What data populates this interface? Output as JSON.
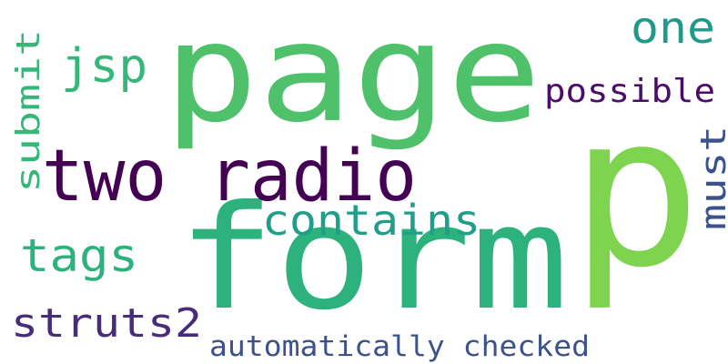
{
  "word_cloud": {
    "words": [
      {
        "text": "page",
        "color": "#4fc16b",
        "orientation": "horizontal"
      },
      {
        "text": "p",
        "color": "#7ed34f",
        "orientation": "horizontal"
      },
      {
        "text": "form",
        "color": "#2db27d",
        "orientation": "horizontal"
      },
      {
        "text": "two radio",
        "color": "#440154",
        "orientation": "horizontal"
      },
      {
        "text": "contains",
        "color": "#1f9e89",
        "orientation": "horizontal"
      },
      {
        "text": "jsp",
        "color": "#35b779",
        "orientation": "horizontal"
      },
      {
        "text": "one",
        "color": "#1f9a8a",
        "orientation": "horizontal"
      },
      {
        "text": "possible",
        "color": "#4b0c6b",
        "orientation": "horizontal"
      },
      {
        "text": "submit",
        "color": "#35b779",
        "orientation": "vertical"
      },
      {
        "text": "must",
        "color": "#3b528b",
        "orientation": "vertical"
      },
      {
        "text": "tags",
        "color": "#2db27d",
        "orientation": "horizontal"
      },
      {
        "text": "struts2",
        "color": "#472c7a",
        "orientation": "horizontal"
      },
      {
        "text": "automatically checked",
        "color": "#3b528b",
        "orientation": "horizontal"
      }
    ]
  }
}
